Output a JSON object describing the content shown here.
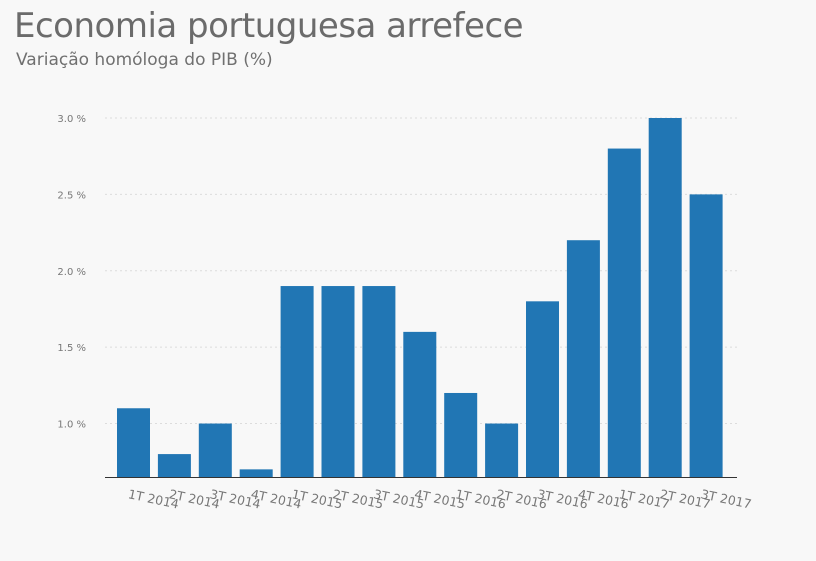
{
  "title": "Economia portuguesa arrefece",
  "subtitle": "Variação homóloga do PIB (%)",
  "chart_data": {
    "type": "bar",
    "categories": [
      "1T 2014",
      "2T 2014",
      "3T 2014",
      "4T 2014",
      "1T 2015",
      "2T 2015",
      "3T 2015",
      "4T 2015",
      "1T 2016",
      "2T 2016",
      "3T 2016",
      "4T 2016",
      "1T 2017",
      "2T 2017",
      "3T 2017"
    ],
    "values": [
      1.1,
      0.8,
      1.0,
      0.7,
      1.9,
      1.9,
      1.9,
      1.6,
      1.2,
      1.0,
      1.8,
      2.2,
      2.8,
      3.0,
      2.5
    ],
    "yticks": [
      "1.0 %",
      "1.5 %",
      "2.0 %",
      "2.5 %",
      "3.0 %"
    ],
    "ytick_values": [
      1.0,
      1.5,
      2.0,
      2.5,
      3.0
    ],
    "ylim": [
      0.65,
      3.0
    ],
    "grid": true,
    "bar_color": "#2176b4"
  }
}
